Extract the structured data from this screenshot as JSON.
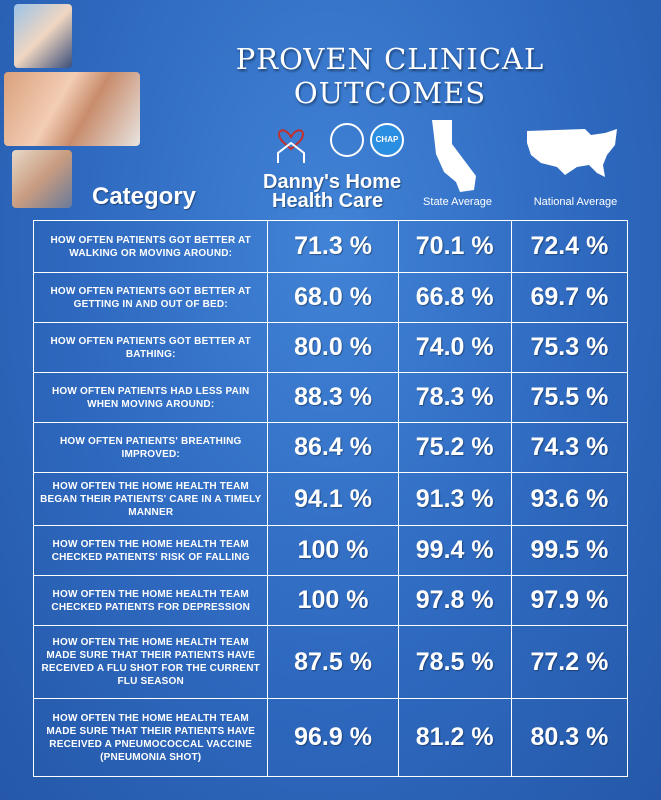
{
  "title": "PROVEN CLINICAL OUTCOMES",
  "header": {
    "category": "Category",
    "brand_line1": "Danny's Home",
    "brand_line2": "Health Care",
    "chap_badge": "CHAP",
    "state_average": "State Average",
    "national_average": "National Average"
  },
  "colors": {
    "background": "#2f6bc0",
    "text": "#ffffff",
    "heart": "#c0302f"
  },
  "rows": [
    {
      "category": "HOW OFTEN PATIENTS GOT BETTER AT WALKING OR MOVING AROUND:",
      "danny": "71.3 %",
      "state": "70.1 %",
      "national": "72.4 %"
    },
    {
      "category": "HOW OFTEN PATIENTS GOT BETTER AT GETTING IN AND OUT OF BED:",
      "danny": "68.0 %",
      "state": "66.8 %",
      "national": "69.7 %"
    },
    {
      "category": "HOW OFTEN PATIENTS GOT BETTER AT BATHING:",
      "danny": "80.0 %",
      "state": "74.0 %",
      "national": "75.3 %"
    },
    {
      "category": "HOW OFTEN PATIENTS HAD LESS PAIN WHEN MOVING AROUND:",
      "danny": "88.3 %",
      "state": "78.3 %",
      "national": "75.5 %"
    },
    {
      "category": "HOW OFTEN PATIENTS' BREATHING IMPROVED:",
      "danny": "86.4 %",
      "state": "75.2 %",
      "national": "74.3 %"
    },
    {
      "category": "HOW OFTEN THE HOME HEALTH TEAM BEGAN THEIR PATIENTS' CARE IN A TIMELY MANNER",
      "danny": "94.1 %",
      "state": "91.3 %",
      "national": "93.6 %"
    },
    {
      "category": "HOW OFTEN THE HOME HEALTH TEAM CHECKED PATIENTS' RISK OF FALLING",
      "danny": "100 %",
      "state": "99.4 %",
      "national": "99.5 %"
    },
    {
      "category": "HOW OFTEN THE HOME HEALTH TEAM CHECKED PATIENTS FOR DEPRESSION",
      "danny": "100 %",
      "state": "97.8 %",
      "national": "97.9 %"
    },
    {
      "category": "HOW OFTEN THE HOME HEALTH TEAM MADE SURE THAT THEIR PATIENTS HAVE RECEIVED A FLU SHOT FOR THE CURRENT FLU SEASON",
      "danny": "87.5 %",
      "state": "78.5 %",
      "national": "77.2 %"
    },
    {
      "category": "HOW OFTEN THE HOME HEALTH TEAM MADE SURE THAT THEIR PATIENTS HAVE RECEIVED A PNEUMOCOCCAL VACCINE (PNEUMONIA SHOT)",
      "danny": "96.9 %",
      "state": "81.2 %",
      "national": "80.3 %"
    }
  ]
}
